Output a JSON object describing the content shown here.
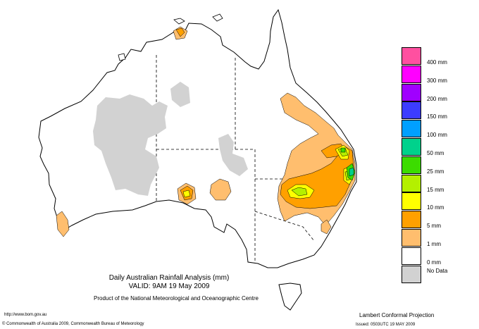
{
  "map": {
    "title": "Daily Australian Rainfall Analysis (mm)",
    "valid": "VALID: 9AM 19 May 2009",
    "product": "Product of the National Meteorological and Oceanographic Centre",
    "url": "http://www.bom.gov.au",
    "copyright": "© Commonwealth of Australia 2009, Commonwealth Bureau of Meteorology",
    "projection": "Lambert Conformal Projection",
    "issued": "Issued: 0503UTC 19 MAY 2009"
  },
  "legend": {
    "items": [
      {
        "label": "400 mm",
        "color": "#ff50a0"
      },
      {
        "label": "300 mm",
        "color": "#ff00ff"
      },
      {
        "label": "200 mm",
        "color": "#a000ff"
      },
      {
        "label": "150 mm",
        "color": "#3c3cff"
      },
      {
        "label": "100 mm",
        "color": "#00a0ff"
      },
      {
        "label": "50 mm",
        "color": "#00d28c"
      },
      {
        "label": "25 mm",
        "color": "#3cdc00"
      },
      {
        "label": "15 mm",
        "color": "#b4f000"
      },
      {
        "label": "10 mm",
        "color": "#ffff00"
      },
      {
        "label": "5 mm",
        "color": "#ffa000"
      },
      {
        "label": "1 mm",
        "color": "#ffbe6e"
      },
      {
        "label": "0 mm",
        "color": "#ffffff"
      },
      {
        "label": "No Data",
        "color": "#d2d2d2"
      }
    ]
  },
  "colors": {
    "nodata": "#d2d2d2",
    "r1": "#ffbe6e",
    "r5": "#ffa000",
    "r10": "#ffff00",
    "r15": "#b4f000",
    "r25": "#3cdc00",
    "r50": "#00d28c"
  }
}
